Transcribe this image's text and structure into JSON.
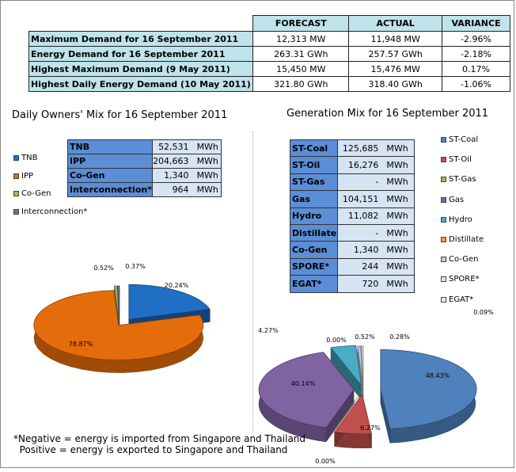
{
  "summary": {
    "headers": [
      "FORECAST",
      "ACTUAL",
      "VARIANCE"
    ],
    "rows": [
      {
        "label": "Maximum Demand for 16 September 2011",
        "forecast": "12,313  MW",
        "actual": "11,948  MW",
        "variance": "-2.96%"
      },
      {
        "label": "Energy Demand for 16 September 2011",
        "forecast": "263.31  GWh",
        "actual": "257.57  GWh",
        "variance": "-2.18%"
      },
      {
        "label": "Highest Maximum Demand (9 May 2011)",
        "forecast": "15,450  MW",
        "actual": "15,476  MW",
        "variance": "0.17%"
      },
      {
        "label": "Highest Daily Energy Demand (10 May 2011)",
        "forecast": "321.80  GWh",
        "actual": "318.40  GWh",
        "variance": "-1.06%"
      }
    ]
  },
  "left": {
    "title": "Daily Owners' Mix for 16 September 2011",
    "unit": "MWh",
    "table": [
      {
        "label": "TNB",
        "value": "52,531"
      },
      {
        "label": "IPP",
        "value": "204,663"
      },
      {
        "label": "Co-Gen",
        "value": "1,340"
      },
      {
        "label": "Interconnection*",
        "value": "964"
      }
    ]
  },
  "right": {
    "title": "Generation Mix for 16 September 2011",
    "unit": "MWh",
    "table": [
      {
        "label": "ST-Coal",
        "value": "125,685"
      },
      {
        "label": "ST-Oil",
        "value": "16,276"
      },
      {
        "label": "ST-Gas",
        "value": "-"
      },
      {
        "label": "Gas",
        "value": "104,151"
      },
      {
        "label": "Hydro",
        "value": "11,082"
      },
      {
        "label": "Distillate",
        "value": "-"
      },
      {
        "label": "Co-Gen",
        "value": "1,340"
      },
      {
        "label": "SPORE*",
        "value": "244"
      },
      {
        "label": "EGAT*",
        "value": "720"
      }
    ]
  },
  "chart_data": [
    {
      "type": "pie",
      "title": "Daily Owners' Mix for 16 September 2011",
      "legend_position": "left",
      "series": [
        {
          "name": "TNB",
          "value": 20.24,
          "label": "20.24%",
          "color": "#1f6fc4"
        },
        {
          "name": "IPP",
          "value": 78.87,
          "label": "78.87%",
          "color": "#e46c0a"
        },
        {
          "name": "Co-Gen",
          "value": 0.52,
          "label": "0.52%",
          "color": "#9bbb59"
        },
        {
          "name": "Interconnection*",
          "value": 0.37,
          "label": "0.37%",
          "color": "#8064a2"
        }
      ]
    },
    {
      "type": "pie",
      "title": "Generation Mix for 16 September 2011",
      "legend_position": "right",
      "series": [
        {
          "name": "ST-Coal",
          "value": 48.43,
          "label": "48.43%",
          "color": "#4f81bd"
        },
        {
          "name": "ST-Oil",
          "value": 6.27,
          "label": "6.27%",
          "color": "#c0504d"
        },
        {
          "name": "ST-Gas",
          "value": 0.0,
          "label": "0.00%",
          "color": "#9bbb59"
        },
        {
          "name": "Gas",
          "value": 40.14,
          "label": "40.14%",
          "color": "#8064a2"
        },
        {
          "name": "Hydro",
          "value": 4.27,
          "label": "4.27%",
          "color": "#4bacc6"
        },
        {
          "name": "Distillate",
          "value": 0.0,
          "label": "0.00%",
          "color": "#f79646"
        },
        {
          "name": "Co-Gen",
          "value": 0.52,
          "label": "0.52%",
          "color": "#b7cde8"
        },
        {
          "name": "SPORE*",
          "value": 0.09,
          "label": "0.09%",
          "color": "#f2dcdb"
        },
        {
          "name": "EGAT*",
          "value": 0.28,
          "label": "0.28%",
          "color": "#ebf1de"
        }
      ]
    }
  ],
  "note": [
    "*Negative = energy is imported from Singapore and Thailand",
    "  Positive = energy is exported to Singapore and Thailand"
  ]
}
